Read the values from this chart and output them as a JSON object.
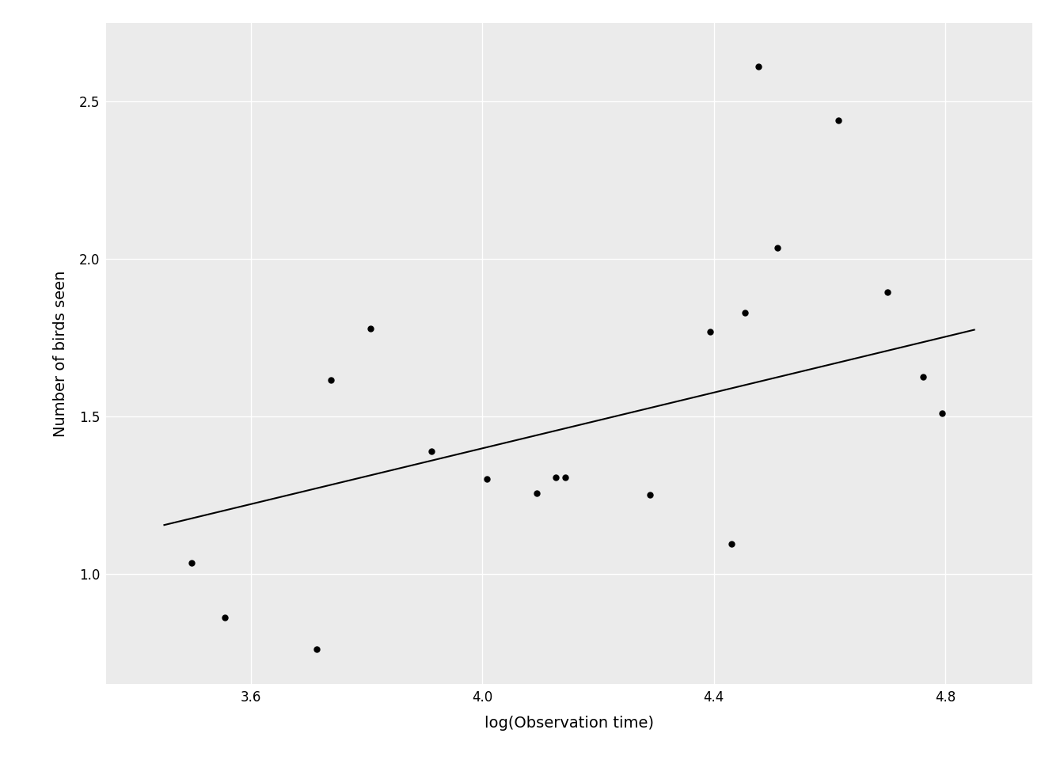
{
  "points_x": [
    3.497,
    3.555,
    3.714,
    3.738,
    3.807,
    3.912,
    4.007,
    4.094,
    4.127,
    4.143,
    4.29,
    4.394,
    4.43,
    4.454,
    4.477,
    4.51,
    4.615,
    4.7,
    4.762,
    4.795
  ],
  "points_y": [
    1.035,
    0.86,
    0.76,
    1.615,
    1.78,
    1.39,
    1.3,
    1.255,
    1.305,
    1.305,
    1.25,
    1.77,
    1.095,
    1.83,
    2.61,
    2.035,
    2.44,
    1.895,
    1.625,
    1.51
  ],
  "line_x": [
    3.45,
    4.85
  ],
  "line_y": [
    1.155,
    1.775
  ],
  "xlim": [
    3.35,
    4.95
  ],
  "ylim": [
    0.65,
    2.75
  ],
  "xlabel": "log(Observation time)",
  "ylabel": "Number of birds seen",
  "xlabel_fontsize": 14,
  "ylabel_fontsize": 14,
  "tick_fontsize": 12,
  "panel_bg_color": "#EBEBEB",
  "fig_bg_color": "#FFFFFF",
  "grid_color": "#FFFFFF",
  "point_color": "#000000",
  "line_color": "#000000",
  "point_size": 25,
  "xticks": [
    3.6,
    4.0,
    4.4,
    4.8
  ],
  "yticks": [
    1.0,
    1.5,
    2.0,
    2.5
  ],
  "xtick_labels": [
    "3.6",
    "4.0",
    "4.4",
    "4.8"
  ],
  "ytick_labels": [
    "1.0",
    "1.5",
    "2.0",
    "2.5"
  ]
}
